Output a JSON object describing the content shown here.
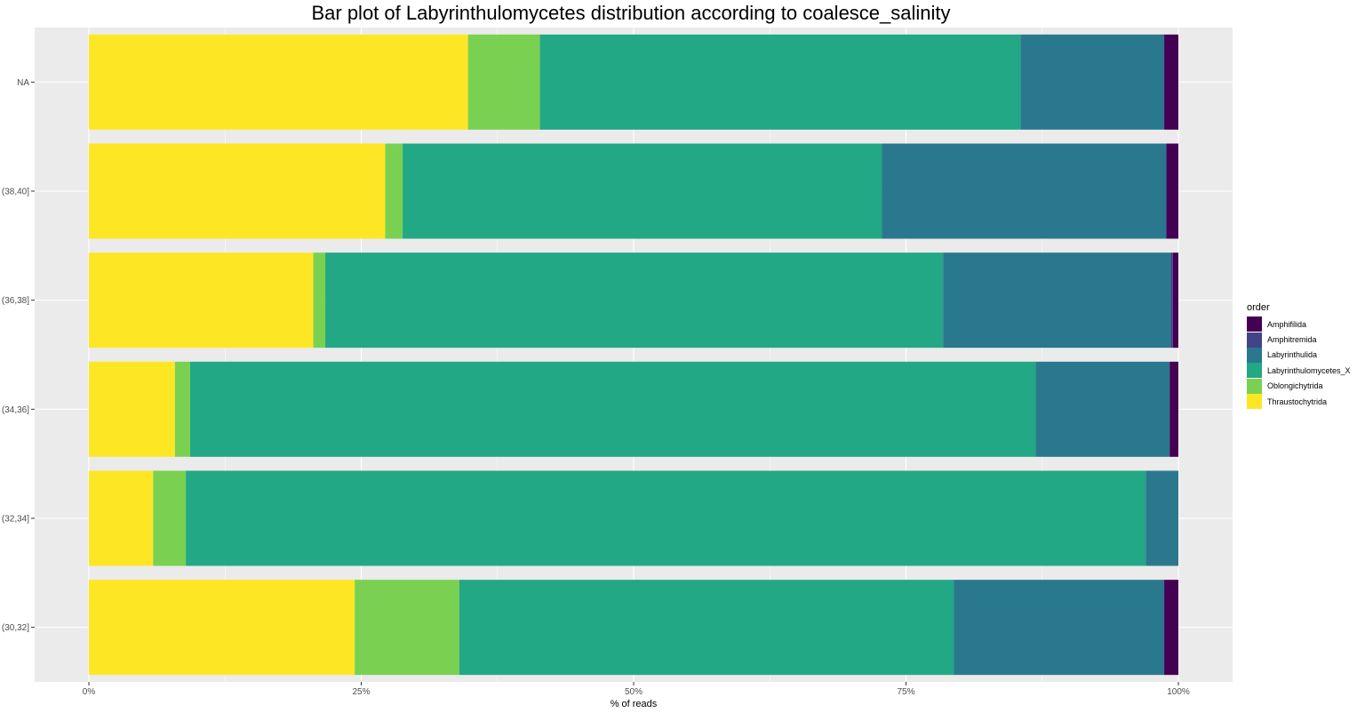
{
  "chart_data": {
    "type": "bar",
    "orientation": "horizontal",
    "stacked": true,
    "title": "Bar plot of Labyrinthulomycetes distribution according to coalesce_salinity",
    "xlabel": "% of reads",
    "ylabel": "",
    "xlim": [
      0,
      100
    ],
    "x_ticks": [
      "0%",
      "25%",
      "50%",
      "75%",
      "100%"
    ],
    "x_tick_values": [
      0,
      25,
      50,
      75,
      100
    ],
    "categories": [
      "NA",
      "(38,40]",
      "(36,38]",
      "(34,36]",
      "(32,34]",
      "(30,32]"
    ],
    "legend_title": "order",
    "legend_position": "right",
    "grid": true,
    "series": [
      {
        "name": "Thraustochytrida",
        "color": "#FDE725",
        "values": [
          34.8,
          27.2,
          20.6,
          7.9,
          5.9,
          24.4
        ]
      },
      {
        "name": "Oblongichytrida",
        "color": "#7AD151",
        "values": [
          6.6,
          1.6,
          1.1,
          1.4,
          3.0,
          9.6
        ]
      },
      {
        "name": "Labyrinthulomycetes_X",
        "color": "#22A884",
        "values": [
          44.1,
          44.0,
          56.7,
          77.6,
          88.1,
          45.4
        ]
      },
      {
        "name": "Labyrinthulida",
        "color": "#2A788E",
        "values": [
          13.2,
          26.1,
          20.9,
          12.3,
          3.0,
          19.3
        ]
      },
      {
        "name": "Amphitremida",
        "color": "#414487",
        "values": [
          0,
          0,
          0.2,
          0,
          0,
          0
        ]
      },
      {
        "name": "Amphifilida",
        "color": "#440154",
        "values": [
          1.3,
          1.1,
          0.5,
          0.8,
          0,
          1.3
        ]
      }
    ]
  }
}
